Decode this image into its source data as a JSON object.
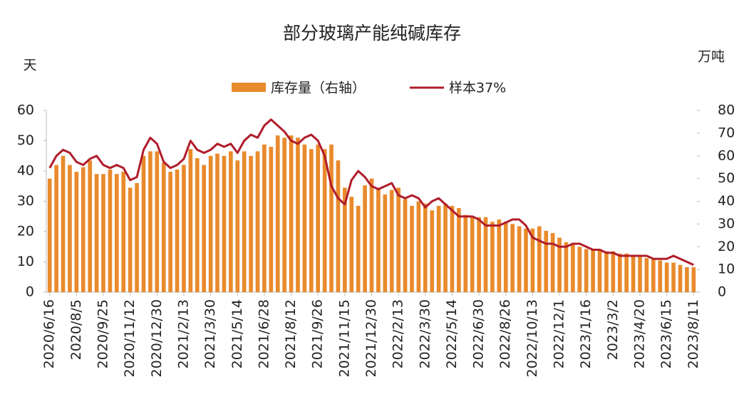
{
  "chart_data": {
    "type": "combo",
    "title": "部分玻璃产能纯碱库存",
    "y_label": "天",
    "y2_label": "万吨",
    "categories": [
      "2020/6/16",
      null,
      null,
      null,
      "2020/8/5",
      null,
      null,
      null,
      "2020/9/25",
      null,
      null,
      null,
      "2020/11/12",
      null,
      null,
      null,
      "2020/12/30",
      null,
      null,
      null,
      "2021/2/13",
      null,
      null,
      null,
      "2021/3/30",
      null,
      null,
      null,
      "2021/5/14",
      null,
      null,
      null,
      "2021/6/28",
      null,
      null,
      null,
      "2021/8/12",
      null,
      null,
      null,
      "2021/9/26",
      null,
      null,
      null,
      "2021/11/15",
      null,
      null,
      null,
      "2021/12/30",
      null,
      null,
      null,
      "2022/2/13",
      null,
      null,
      null,
      "2022/3/30",
      null,
      null,
      null,
      "2022/5/14",
      null,
      null,
      null,
      "2022/6/30",
      null,
      null,
      null,
      "2022/8/26",
      null,
      null,
      null,
      "2022/10/13",
      null,
      null,
      null,
      "2022/12/1",
      null,
      null,
      null,
      "2023/1/16",
      null,
      null,
      null,
      "2023/3/2",
      null,
      null,
      null,
      "2023/4/20",
      null,
      null,
      null,
      "2023/6/15",
      null,
      null,
      null,
      "2023/8/11"
    ],
    "series": [
      {
        "name": "库存量（右轴）",
        "type": "bar",
        "axis": "y2",
        "color": "#e98a2c",
        "values": [
          50,
          56,
          60,
          56,
          53,
          55,
          58,
          52,
          52,
          54,
          52,
          53,
          46,
          48,
          60,
          62,
          62,
          57,
          53,
          54,
          56,
          63,
          59,
          56,
          60,
          61,
          60,
          62,
          58,
          62,
          60,
          62,
          65,
          64,
          69,
          68,
          69,
          68,
          65,
          63,
          65,
          63,
          65,
          58,
          46,
          42,
          38,
          47,
          50,
          46,
          43,
          45,
          46,
          41,
          38,
          40,
          39,
          36,
          38,
          39,
          38,
          37,
          34,
          33,
          33,
          33,
          31,
          32,
          31,
          30,
          29,
          28,
          28,
          29,
          27,
          26,
          24,
          22,
          21,
          20,
          19,
          19,
          19,
          18,
          18,
          17,
          17,
          16,
          16,
          15,
          15,
          14,
          13,
          13,
          12,
          11,
          11
        ]
      },
      {
        "name": "样本37%",
        "type": "line",
        "axis": "y",
        "color": "#b01d2b",
        "values": [
          41,
          45,
          47,
          46,
          43,
          42,
          44,
          45,
          42,
          41,
          42,
          41,
          37,
          38,
          47,
          51,
          49,
          43,
          41,
          42,
          44,
          50,
          47,
          46,
          47,
          49,
          48,
          49,
          46,
          50,
          52,
          51,
          55,
          57,
          55,
          53,
          50,
          49,
          51,
          52,
          50,
          45,
          35,
          31,
          29,
          37,
          40,
          38,
          35,
          34,
          35,
          36,
          32,
          31,
          32,
          31,
          28,
          30,
          31,
          29,
          27,
          25,
          25,
          25,
          24,
          22,
          22,
          22,
          23,
          24,
          24,
          22,
          18,
          17,
          16,
          16,
          15,
          15,
          16,
          16,
          15,
          14,
          14,
          13,
          13,
          12,
          12,
          12,
          12,
          12,
          11,
          11,
          11,
          12,
          11,
          10,
          9
        ]
      }
    ],
    "ylim": [
      0,
      60
    ],
    "yticks": [
      0,
      10,
      20,
      30,
      40,
      50,
      60
    ],
    "y2lim": [
      0,
      80
    ],
    "y2ticks": [
      0,
      10,
      20,
      30,
      40,
      50,
      60,
      70,
      80
    ]
  }
}
